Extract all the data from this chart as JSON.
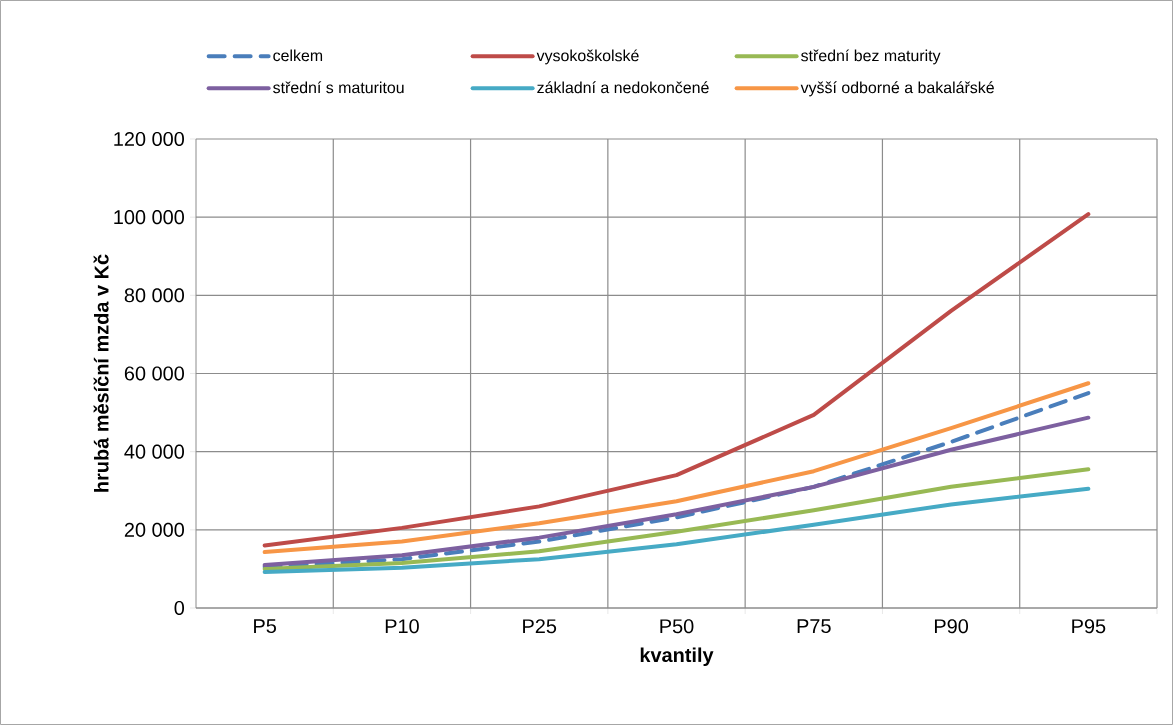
{
  "chart_data": {
    "type": "line",
    "xlabel": "kvantily",
    "ylabel": "hrubá měsíční mzda v Kč",
    "categories": [
      "P5",
      "P10",
      "P25",
      "P50",
      "P75",
      "P90",
      "P95"
    ],
    "ylim": [
      0,
      120000
    ],
    "yticks": [
      {
        "value": 0,
        "label": "0"
      },
      {
        "value": 20000,
        "label": "20 000"
      },
      {
        "value": 40000,
        "label": "40 000"
      },
      {
        "value": 60000,
        "label": "60 000"
      },
      {
        "value": 80000,
        "label": "80 000"
      },
      {
        "value": 100000,
        "label": "100 000"
      },
      {
        "value": 120000,
        "label": "120 000"
      }
    ],
    "grid": true,
    "legend": "top",
    "marker": "none",
    "series": [
      {
        "name": "celkem",
        "color": "#4a7ebb",
        "line_style": "dashed",
        "values": [
          10500,
          12500,
          17000,
          23200,
          31000,
          42500,
          55000
        ]
      },
      {
        "name": "vysokoškolské",
        "color": "#be4b48",
        "values": [
          16000,
          20500,
          26000,
          34000,
          49400,
          76000,
          100800
        ]
      },
      {
        "name": "střední bez maturity",
        "color": "#98b954",
        "values": [
          10000,
          11500,
          14500,
          19500,
          25000,
          31000,
          35500
        ]
      },
      {
        "name": "střední s maturitou",
        "color": "#7d60a0",
        "values": [
          11000,
          13500,
          18000,
          24000,
          31000,
          40500,
          48700
        ]
      },
      {
        "name": "základní a nedokončené",
        "color": "#46aac5",
        "values": [
          9200,
          10300,
          12500,
          16300,
          21300,
          26500,
          30500
        ]
      },
      {
        "name": "vyšší odborné a bakalářské",
        "color": "#f79646",
        "values": [
          14300,
          17000,
          21700,
          27300,
          35000,
          46000,
          57500
        ]
      }
    ]
  }
}
